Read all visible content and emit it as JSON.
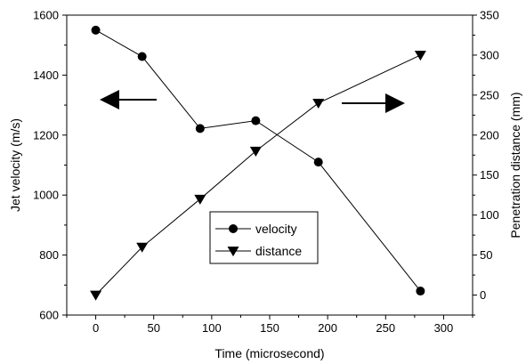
{
  "chart_data": {
    "type": "line",
    "xlabel": "Time (microsecond)",
    "ylabel": "Jet velocity (m/s)",
    "y2label": "Penetration distance (mm)",
    "xlim": [
      -25,
      325
    ],
    "ylim": [
      600,
      1600
    ],
    "y2lim": [
      -25,
      350
    ],
    "x_ticks": [
      "0",
      "50",
      "100",
      "150",
      "200",
      "250",
      "300"
    ],
    "y_ticks": [
      "600",
      "800",
      "1000",
      "1200",
      "1400",
      "1600"
    ],
    "y2_ticks": [
      "0",
      "50",
      "100",
      "150",
      "200",
      "250",
      "300",
      "350"
    ],
    "grid": false,
    "legend_position": "center",
    "series": [
      {
        "name": "velocity",
        "axis": "left",
        "marker": "circle",
        "x": [
          0,
          40,
          90,
          138,
          192,
          280
        ],
        "y": [
          1550,
          1462,
          1222,
          1248,
          1110,
          680
        ]
      },
      {
        "name": "distance",
        "axis": "right",
        "marker": "triangle-down",
        "x": [
          0,
          40,
          90,
          138,
          192,
          280
        ],
        "y": [
          0,
          60,
          120,
          180,
          240,
          300
        ]
      }
    ],
    "annotations": [
      {
        "type": "arrow",
        "direction": "left",
        "meaning": "left-axis"
      },
      {
        "type": "arrow",
        "direction": "right",
        "meaning": "right-axis"
      }
    ]
  }
}
